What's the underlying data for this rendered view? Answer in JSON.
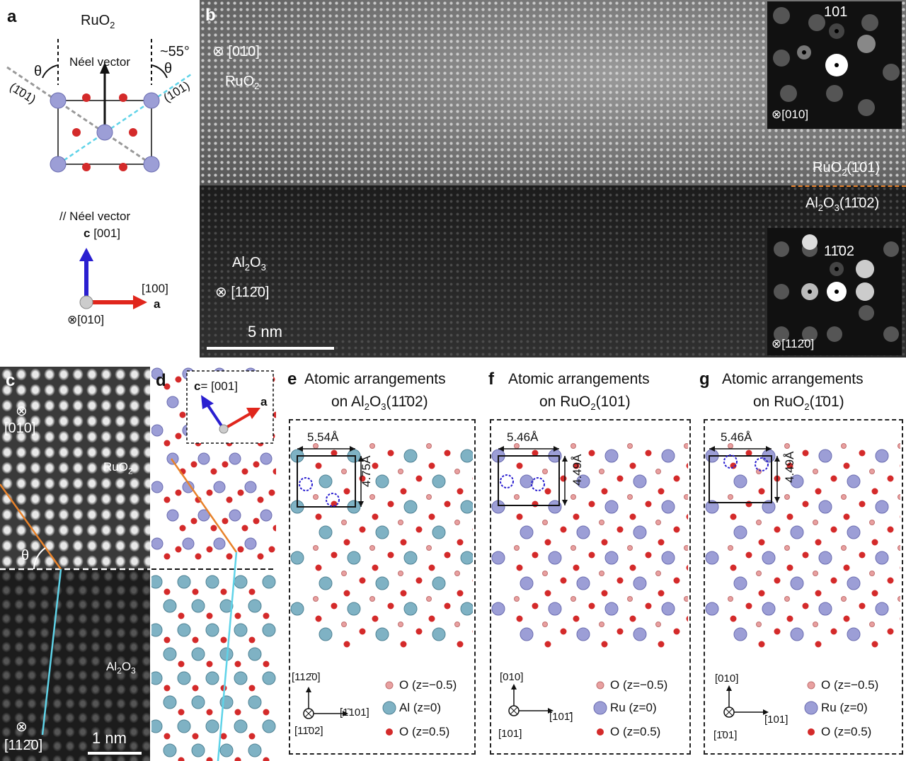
{
  "panel_a": {
    "label": "a",
    "title_main": "RuO",
    "title_sub": "2",
    "neel_vector": "Néel vector",
    "angle_approx": "~55°",
    "theta": "θ",
    "plane_left": "(1̄01)",
    "plane_right": "(101)",
    "axis_parallel": "// Néel vector",
    "axis_c_bold": "c",
    "axis_c": "[001]",
    "axis_a_dir": "[100]",
    "axis_a_bold": "a",
    "axis_b": "⊗[010]"
  },
  "panel_b": {
    "label": "b",
    "zone_ruo2": "⊗ [010]",
    "ruo2": "RuO",
    "ruo2_sub": "2",
    "inset_top_label": "101",
    "inset_top_zone": "⊗[010]",
    "interface_top": "RuO",
    "interface_top_sub": "2",
    "interface_top_plane": "(101)",
    "interface_bottom": "Al",
    "interface_bottom_sub1": "2",
    "interface_bottom_o": "O",
    "interface_bottom_sub2": "3",
    "interface_bottom_plane": "(11̄02)",
    "inset_bottom_label": "11̄02",
    "inset_bottom_zone": "⊗[112̄0]",
    "al2o3": "Al",
    "al2o3_sub": "2",
    "al2o3_o": "O",
    "al2o3_sub2": "3",
    "zone_al2o3": "⊗ [112̄0]",
    "scale": "5 nm"
  },
  "panel_c": {
    "label": "c",
    "zone_top": "⊗",
    "zone_top_dir": "[010]",
    "ruo2": "RuO",
    "ruo2_sub": "2",
    "theta": "θ",
    "al2o3": "Al",
    "al2o3_sub": "2",
    "al2o3_o": "O",
    "al2o3_sub2": "3",
    "zone_bottom": "⊗",
    "zone_bottom_dir": "[112̄0]",
    "scale": "1 nm"
  },
  "panel_d": {
    "label": "d",
    "axis_c_bold": "c",
    "axis_c": "= [001]",
    "axis_a": "a"
  },
  "panel_e": {
    "label": "e",
    "title1": "Atomic arrangements",
    "title2": "on Al",
    "title2_sub1": "2",
    "title2_o": "O",
    "title2_sub2": "3",
    "title2_plane": "(11̄02)",
    "dim_w": "5.54Å",
    "dim_h": "4.75Å",
    "axis_up": "[112̄0]",
    "axis_right": "[1̄101]",
    "axis_in": "[11̄02]",
    "legend": [
      "O (z=−0.5)",
      "Al (z=0)",
      "O (z=0.5)"
    ]
  },
  "panel_f": {
    "label": "f",
    "title1": "Atomic arrangements",
    "title2": "on RuO",
    "title2_sub": "2",
    "title2_plane": "(101)",
    "dim_w": "5.46Å",
    "dim_h": "4.49Å",
    "axis_up": "[010]",
    "axis_right": "[101̄]",
    "axis_in": "[101]",
    "legend": [
      "O (z=−0.5)",
      "Ru (z=0)",
      "O (z=0.5)"
    ]
  },
  "panel_g": {
    "label": "g",
    "title1": "Atomic arrangements",
    "title2": "on RuO",
    "title2_sub": "2",
    "title2_plane": "(1̄01)",
    "dim_w": "5.46Å",
    "dim_h": "4.49Å",
    "axis_up": "[010]",
    "axis_right": "[101]",
    "axis_in": "[1̄01]",
    "legend": [
      "O (z=−0.5)",
      "Ru (z=0)",
      "O (z=0.5)"
    ]
  },
  "colors": {
    "ru": "#9c9ed6",
    "al": "#7fb2c4",
    "o": "#d42a2a",
    "o_light": "#e8a0a0",
    "cyan": "#5fd3e8",
    "orange": "#e8822a",
    "blue_arrow": "#2a1fd0",
    "red_arrow": "#e0261c"
  }
}
